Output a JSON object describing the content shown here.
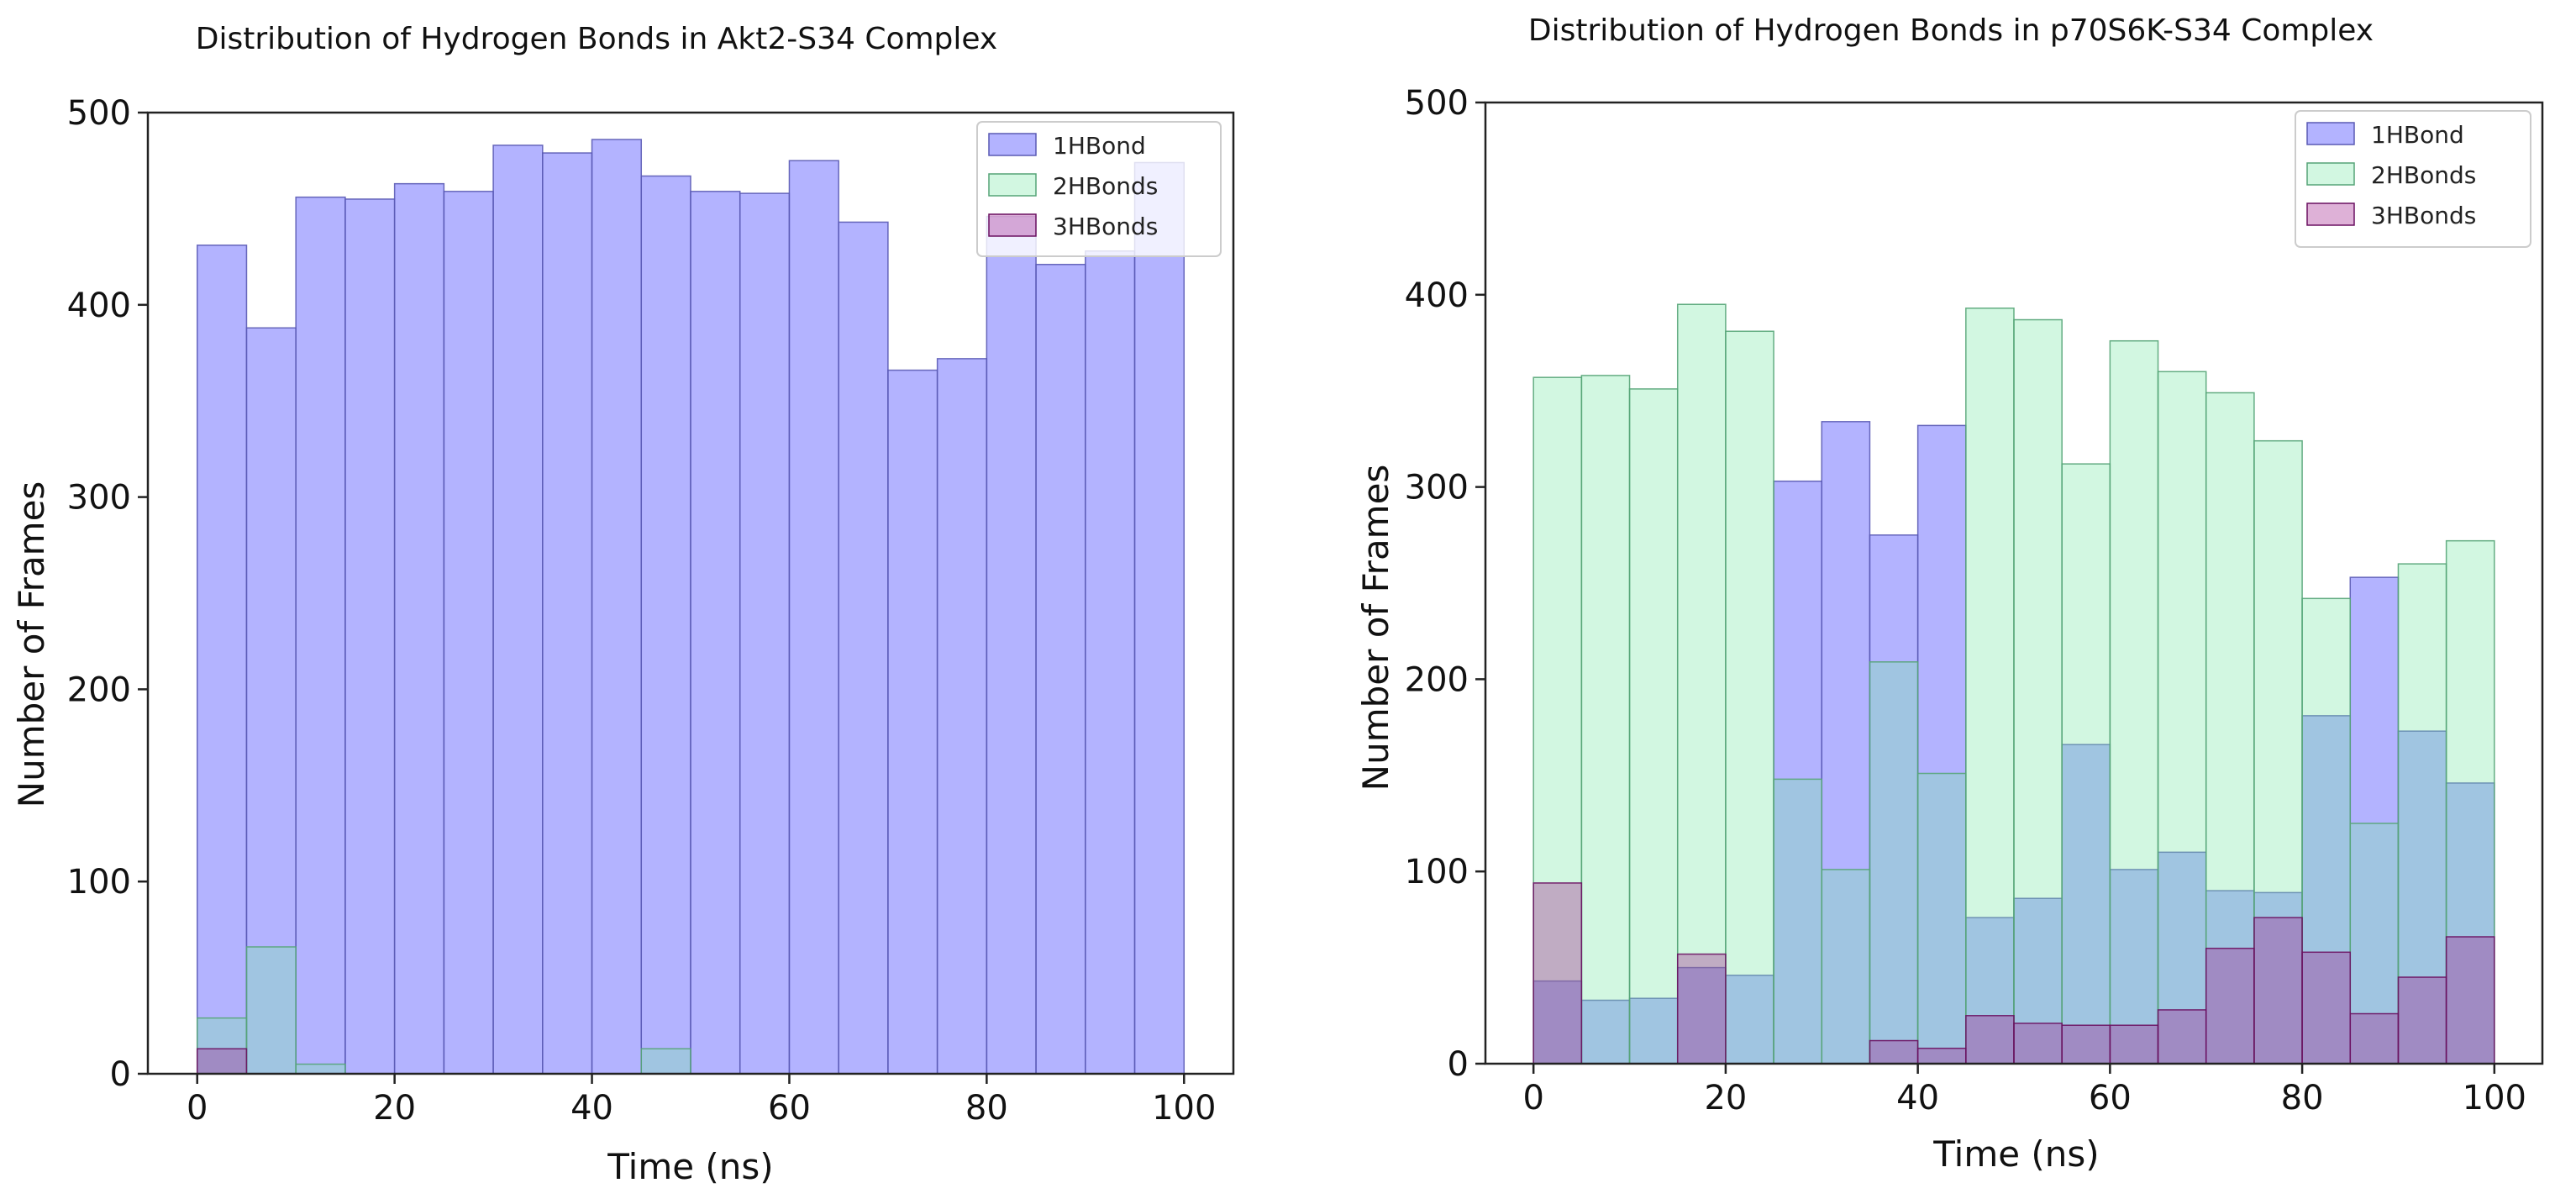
{
  "chart_data": [
    {
      "type": "bar",
      "title": "Distribution of Hydrogen Bonds in Akt2-S34 Complex",
      "xlabel": "Time (ns)",
      "ylabel": "Number of Frames",
      "xlim": [
        -5,
        105
      ],
      "ylim": [
        0,
        500
      ],
      "xticks": [
        0,
        20,
        40,
        60,
        80,
        100
      ],
      "yticks": [
        0,
        100,
        200,
        300,
        400,
        500
      ],
      "legend_position": "top-right",
      "bin_edges": [
        0,
        5,
        10,
        15,
        20,
        25,
        30,
        35,
        40,
        45,
        50,
        55,
        60,
        65,
        70,
        75,
        80,
        85,
        90,
        95,
        100
      ],
      "series": [
        {
          "name": "1HBond",
          "color": "#8080ff",
          "edge": "#5a5ab4",
          "opacity": 0.6,
          "values": [
            431,
            388,
            456,
            455,
            463,
            459,
            483,
            479,
            486,
            467,
            459,
            458,
            475,
            443,
            366,
            372,
            446,
            421,
            428,
            474
          ]
        },
        {
          "name": "2HBonds",
          "color": "#7ee8a8",
          "edge": "#55a477",
          "opacity": 0.35,
          "values": [
            29,
            66,
            5,
            0,
            0,
            0,
            0,
            0,
            0,
            13,
            0,
            0,
            0,
            0,
            0,
            0,
            0,
            0,
            0,
            0
          ]
        },
        {
          "name": "3HBonds",
          "color": "#a0208c",
          "edge": "#6a1060",
          "opacity": 0.35,
          "values": [
            13,
            0,
            0,
            0,
            0,
            0,
            0,
            0,
            0,
            0,
            0,
            0,
            0,
            0,
            0,
            0,
            0,
            0,
            0,
            0
          ]
        }
      ]
    },
    {
      "type": "bar",
      "title": "Distribution of Hydrogen Bonds in p70S6K-S34 Complex",
      "xlabel": "Time (ns)",
      "ylabel": "Number of Frames",
      "xlim": [
        -5,
        105
      ],
      "ylim": [
        0,
        500
      ],
      "xticks": [
        0,
        20,
        40,
        60,
        80,
        100
      ],
      "yticks": [
        0,
        100,
        200,
        300,
        400,
        500
      ],
      "legend_position": "top-right",
      "bin_edges": [
        0,
        5,
        10,
        15,
        20,
        25,
        30,
        35,
        40,
        45,
        50,
        55,
        60,
        65,
        70,
        75,
        80,
        85,
        90,
        95,
        100
      ],
      "series": [
        {
          "name": "1HBond",
          "color": "#8080ff",
          "edge": "#5a5ab4",
          "opacity": 0.6,
          "values": [
            43,
            33,
            34,
            50,
            46,
            303,
            334,
            275,
            332,
            76,
            86,
            166,
            101,
            110,
            90,
            89,
            181,
            253,
            173,
            146
          ]
        },
        {
          "name": "2HBonds",
          "color": "#7ee8a8",
          "edge": "#55a477",
          "opacity": 0.35,
          "values": [
            357,
            358,
            351,
            395,
            381,
            148,
            101,
            209,
            151,
            393,
            387,
            312,
            376,
            360,
            349,
            324,
            242,
            125,
            260,
            272
          ]
        },
        {
          "name": "3HBonds",
          "color": "#a0208c",
          "edge": "#6a1060",
          "opacity": 0.35,
          "values": [
            94,
            0,
            0,
            57,
            0,
            0,
            0,
            12,
            8,
            25,
            21,
            20,
            20,
            28,
            60,
            76,
            58,
            26,
            45,
            66
          ]
        }
      ]
    }
  ]
}
